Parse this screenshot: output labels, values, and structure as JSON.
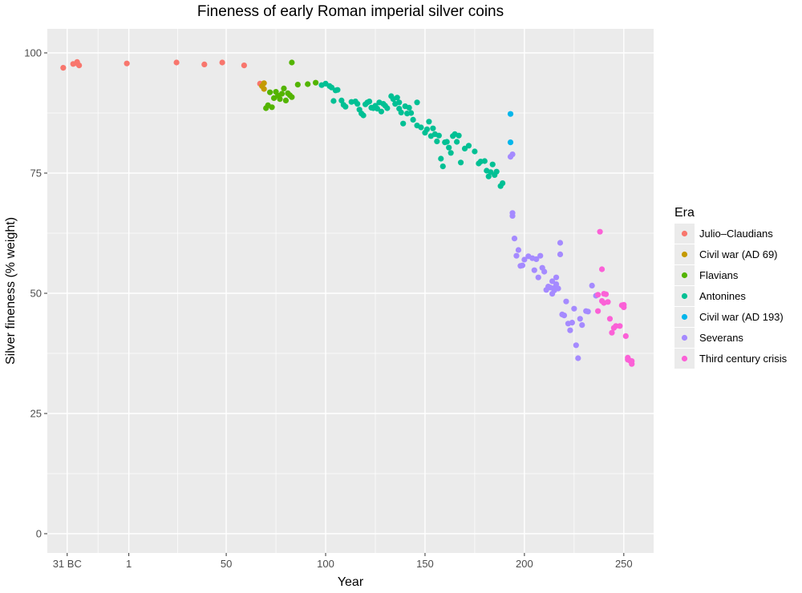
{
  "chart_data": {
    "type": "scatter",
    "title": "Fineness of early Roman imperial silver coins",
    "xlabel": "Year",
    "ylabel": "Silver fineness (% weight)",
    "xlim": [
      -40,
      265
    ],
    "ylim": [
      -4,
      105
    ],
    "x_ticks": [
      {
        "value": -30,
        "label": "31 BC"
      },
      {
        "value": 1,
        "label": "1"
      },
      {
        "value": 50,
        "label": "50"
      },
      {
        "value": 100,
        "label": "100"
      },
      {
        "value": 150,
        "label": "150"
      },
      {
        "value": 200,
        "label": "200"
      },
      {
        "value": 250,
        "label": "250"
      }
    ],
    "y_ticks": [
      0,
      25,
      50,
      75,
      100
    ],
    "grid": true,
    "legend": {
      "title": "Era",
      "position": "right"
    },
    "series": [
      {
        "name": "Julio–Claudians",
        "color": "#F8766D",
        "points": [
          [
            -32,
            96.9
          ],
          [
            -27,
            97.7
          ],
          [
            -25,
            98.1
          ],
          [
            -24,
            97.4
          ],
          [
            -25,
            97.8
          ],
          [
            0,
            97.8
          ],
          [
            25,
            98.0
          ],
          [
            39,
            97.6
          ],
          [
            48,
            98.0
          ],
          [
            59,
            97.4
          ],
          [
            67,
            93.6
          ]
        ]
      },
      {
        "name": "Civil war (AD 69)",
        "color": "#C49A00",
        "points": [
          [
            69,
            93.7
          ],
          [
            69,
            92.5
          ],
          [
            68,
            93.1
          ]
        ]
      },
      {
        "name": "Flavians",
        "color": "#53B400",
        "points": [
          [
            70,
            88.5
          ],
          [
            71,
            89.1
          ],
          [
            72,
            91.8
          ],
          [
            73,
            88.7
          ],
          [
            74,
            90.6
          ],
          [
            75,
            91.9
          ],
          [
            76,
            91.1
          ],
          [
            77,
            90.4
          ],
          [
            78,
            91.5
          ],
          [
            79,
            92.6
          ],
          [
            80,
            90.1
          ],
          [
            81,
            91.6
          ],
          [
            82,
            91.2
          ],
          [
            83,
            90.8
          ],
          [
            83,
            98.0
          ],
          [
            86,
            93.4
          ],
          [
            91,
            93.5
          ],
          [
            95,
            93.8
          ]
        ]
      },
      {
        "name": "Antonines",
        "color": "#00C094",
        "points": [
          [
            98,
            93.3
          ],
          [
            100,
            93.6
          ],
          [
            102,
            93.1
          ],
          [
            103,
            92.8
          ],
          [
            105,
            92.2
          ],
          [
            106,
            92.3
          ],
          [
            104,
            90.0
          ],
          [
            108,
            90.1
          ],
          [
            109,
            89.2
          ],
          [
            110,
            88.8
          ],
          [
            113,
            89.8
          ],
          [
            115,
            89.9
          ],
          [
            116,
            89.4
          ],
          [
            117,
            88.2
          ],
          [
            118,
            87.4
          ],
          [
            119,
            87.0
          ],
          [
            120,
            89.3
          ],
          [
            121,
            89.7
          ],
          [
            122,
            89.9
          ],
          [
            123,
            88.6
          ],
          [
            124,
            88.5
          ],
          [
            125,
            89.0
          ],
          [
            126,
            88.4
          ],
          [
            127,
            89.7
          ],
          [
            128,
            87.8
          ],
          [
            129,
            89.4
          ],
          [
            130,
            89.0
          ],
          [
            131,
            88.5
          ],
          [
            133,
            91.0
          ],
          [
            134,
            90.4
          ],
          [
            135,
            89.4
          ],
          [
            136,
            90.7
          ],
          [
            137,
            89.7
          ],
          [
            137,
            88.4
          ],
          [
            138,
            87.6
          ],
          [
            139,
            85.3
          ],
          [
            140,
            88.9
          ],
          [
            141,
            87.4
          ],
          [
            142,
            88.6
          ],
          [
            143,
            87.5
          ],
          [
            144,
            86.1
          ],
          [
            146,
            89.7
          ],
          [
            146,
            84.9
          ],
          [
            148,
            84.5
          ],
          [
            150,
            83.4
          ],
          [
            151,
            84.1
          ],
          [
            152,
            85.7
          ],
          [
            153,
            82.7
          ],
          [
            154,
            84.3
          ],
          [
            155,
            83.1
          ],
          [
            156,
            81.6
          ],
          [
            157,
            82.8
          ],
          [
            158,
            78.0
          ],
          [
            159,
            76.4
          ],
          [
            160,
            81.4
          ],
          [
            161,
            81.5
          ],
          [
            162,
            80.3
          ],
          [
            163,
            79.2
          ],
          [
            164,
            82.7
          ],
          [
            165,
            83.1
          ],
          [
            166,
            81.5
          ],
          [
            167,
            82.8
          ],
          [
            168,
            77.2
          ],
          [
            170,
            80.1
          ],
          [
            172,
            80.7
          ],
          [
            175,
            79.5
          ],
          [
            177,
            77.0
          ],
          [
            178,
            77.4
          ],
          [
            180,
            77.5
          ],
          [
            181,
            75.5
          ],
          [
            182,
            74.3
          ],
          [
            183,
            75.2
          ],
          [
            184,
            76.8
          ],
          [
            185,
            74.6
          ],
          [
            186,
            75.3
          ],
          [
            188,
            72.3
          ],
          [
            189,
            72.9
          ]
        ]
      },
      {
        "name": "Civil war (AD 193)",
        "color": "#00B6EB",
        "points": [
          [
            193,
            87.3
          ],
          [
            193,
            81.4
          ]
        ]
      },
      {
        "name": "Severans",
        "color": "#A58AFF",
        "points": [
          [
            193,
            78.4
          ],
          [
            194,
            78.9
          ],
          [
            194,
            66.7
          ],
          [
            194,
            66.1
          ],
          [
            195,
            61.4
          ],
          [
            196,
            57.8
          ],
          [
            197,
            59.0
          ],
          [
            198,
            55.7
          ],
          [
            199,
            55.8
          ],
          [
            200,
            57.0
          ],
          [
            202,
            57.7
          ],
          [
            204,
            57.3
          ],
          [
            205,
            54.8
          ],
          [
            206,
            57.1
          ],
          [
            207,
            53.3
          ],
          [
            208,
            57.8
          ],
          [
            209,
            55.3
          ],
          [
            210,
            54.5
          ],
          [
            211,
            50.7
          ],
          [
            212,
            51.4
          ],
          [
            213,
            51.2
          ],
          [
            214,
            52.5
          ],
          [
            214,
            49.9
          ],
          [
            215,
            50.6
          ],
          [
            215,
            51.1
          ],
          [
            216,
            53.3
          ],
          [
            216,
            51.9
          ],
          [
            217,
            51.0
          ],
          [
            218,
            60.5
          ],
          [
            218,
            58.1
          ],
          [
            219,
            45.6
          ],
          [
            220,
            45.4
          ],
          [
            221,
            48.3
          ],
          [
            222,
            43.7
          ],
          [
            223,
            42.3
          ],
          [
            224,
            43.9
          ],
          [
            225,
            46.8
          ],
          [
            226,
            39.2
          ],
          [
            227,
            36.5
          ],
          [
            228,
            44.7
          ],
          [
            229,
            43.4
          ],
          [
            231,
            46.3
          ],
          [
            232,
            46.2
          ],
          [
            234,
            51.6
          ],
          [
            236,
            49.5
          ]
        ]
      },
      {
        "name": "Third century crisis",
        "color": "#FB61D7",
        "points": [
          [
            237,
            49.7
          ],
          [
            237,
            46.3
          ],
          [
            238,
            62.8
          ],
          [
            239,
            55.0
          ],
          [
            239,
            48.4
          ],
          [
            240,
            49.9
          ],
          [
            240,
            48.0
          ],
          [
            241,
            49.8
          ],
          [
            242,
            48.2
          ],
          [
            243,
            44.7
          ],
          [
            244,
            41.8
          ],
          [
            245,
            42.8
          ],
          [
            246,
            43.2
          ],
          [
            248,
            43.2
          ],
          [
            249,
            47.5
          ],
          [
            250,
            47.1
          ],
          [
            250,
            47.6
          ],
          [
            251,
            41.1
          ],
          [
            252,
            36.6
          ],
          [
            252,
            36.2
          ],
          [
            253,
            36.0
          ],
          [
            254,
            35.9
          ],
          [
            254,
            35.3
          ]
        ]
      }
    ]
  }
}
